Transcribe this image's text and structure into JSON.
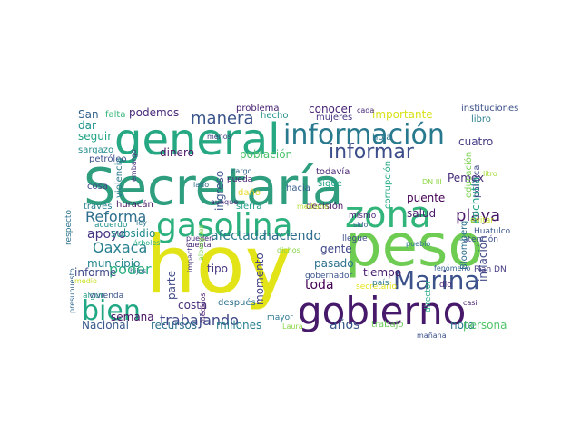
{
  "words": [
    {
      "text": "Secretaría",
      "color": "#2e9e7f"
    },
    {
      "text": "hoy",
      "color": "#e2e418"
    },
    {
      "text": "peso",
      "color": "#6fcc53"
    },
    {
      "text": "gobierno",
      "color": "#47196b"
    },
    {
      "text": "general",
      "color": "#26a883"
    },
    {
      "text": "información",
      "color": "#29798e"
    },
    {
      "text": "gasolina",
      "color": "#2cb17e"
    },
    {
      "text": "zona",
      "color": "#32b57a"
    },
    {
      "text": "Marina",
      "color": "#3b528b"
    },
    {
      "text": "bien",
      "color": "#22a785"
    },
    {
      "text": "informar",
      "color": "#3d4e8a"
    },
    {
      "text": "manera",
      "color": "#3a548c"
    },
    {
      "text": "Reforma",
      "color": "#2e6f8e"
    },
    {
      "text": "playa",
      "color": "#481769"
    },
    {
      "text": "trabajando",
      "color": "#3f4889"
    },
    {
      "text": "Oaxaca",
      "color": "#27808e"
    },
    {
      "text": "apoyo",
      "color": "#453681"
    },
    {
      "text": "poder",
      "color": "#2bb07f"
    },
    {
      "text": "municipio",
      "color": "#25858e"
    },
    {
      "text": "haciendo",
      "color": "#2f6c8e"
    },
    {
      "text": "ingreso",
      "color": "#3b528b"
    },
    {
      "text": "población",
      "color": "#4cc26c"
    },
    {
      "text": "importante",
      "color": "#d8e219"
    },
    {
      "text": "afectada",
      "color": "#287c8e"
    },
    {
      "text": "Pemex",
      "color": "#472c7a"
    },
    {
      "text": "podemos",
      "color": "#482979"
    },
    {
      "text": "conocer",
      "color": "#482575"
    },
    {
      "text": "dinero",
      "color": "#481668"
    },
    {
      "text": "Pochutla",
      "color": "#21a685"
    },
    {
      "text": "subsidio",
      "color": "#238a8d"
    },
    {
      "text": "gente",
      "color": "#3f4788"
    },
    {
      "text": "pasado",
      "color": "#2c728e"
    },
    {
      "text": "salud",
      "color": "#481d6f"
    },
    {
      "text": "costa",
      "color": "#472d7b"
    },
    {
      "text": "toda",
      "color": "#440154"
    },
    {
      "text": "millones",
      "color": "#26828e"
    },
    {
      "text": "recursos",
      "color": "#2d718e"
    },
    {
      "text": "parte",
      "color": "#3e4989"
    },
    {
      "text": "momento",
      "color": "#424086"
    },
    {
      "text": "años",
      "color": "#38588c"
    },
    {
      "text": "nota",
      "color": "#2b758e"
    },
    {
      "text": "semana",
      "color": "#471365"
    },
    {
      "text": "informe",
      "color": "#3e4a89"
    },
    {
      "text": "Nacional",
      "color": "#38598c"
    },
    {
      "text": "San",
      "color": "#33638d"
    },
    {
      "text": "dar",
      "color": "#20928c"
    },
    {
      "text": "seguir",
      "color": "#20a386"
    },
    {
      "text": "sargazo",
      "color": "#228d8d"
    },
    {
      "text": "tipo",
      "color": "#46337f"
    },
    {
      "text": "puente",
      "color": "#440154"
    },
    {
      "text": "tiempo",
      "color": "#481b6d"
    },
    {
      "text": "inflación",
      "color": "#3f4889"
    },
    {
      "text": "persona",
      "color": "#52c569"
    },
    {
      "text": "trabajo",
      "color": "#6ccd5a"
    },
    {
      "text": "cuatro",
      "color": "#443a83"
    },
    {
      "text": "hoja",
      "color": "#2a778e"
    },
    {
      "text": "problema",
      "color": "#482173"
    },
    {
      "text": "hecho",
      "color": "#21918c"
    },
    {
      "text": "mujeres",
      "color": "#46337e"
    },
    {
      "text": "cada",
      "color": "#472a7a"
    },
    {
      "text": "instituciones",
      "color": "#3b518b"
    },
    {
      "text": "libro",
      "color": "#277f8e"
    },
    {
      "text": "falta",
      "color": "#35b779"
    },
    {
      "text": "menos",
      "color": "#433e85"
    },
    {
      "text": "petróleo",
      "color": "#3c4f8a"
    },
    {
      "text": "embargo",
      "color": "#46307e"
    },
    {
      "text": "cargo",
      "color": "#31668e"
    },
    {
      "text": "todavía",
      "color": "#482475"
    },
    {
      "text": "corrupción",
      "color": "#25ab82"
    },
    {
      "text": "educación",
      "color": "#7ad151"
    },
    {
      "text": "política",
      "color": "#3f4889"
    },
    {
      "text": "litro",
      "color": "#a5db36"
    },
    {
      "text": "cosa",
      "color": "#404588"
    },
    {
      "text": "violencia",
      "color": "#297a8e"
    },
    {
      "text": "huracán",
      "color": "#481668"
    },
    {
      "text": "daño",
      "color": "#ead72c"
    },
    {
      "text": "hacia",
      "color": "#355f8d"
    },
    {
      "text": "sigue",
      "color": "#1fa287"
    },
    {
      "text": "DN III",
      "color": "#8ed645"
    },
    {
      "text": "pueda",
      "color": "#482173"
    },
    {
      "text": "lado",
      "color": "#306a8e"
    },
    {
      "text": "aunque",
      "color": "#472e7c"
    },
    {
      "text": "sierra",
      "color": "#1f9e89"
    },
    {
      "text": "través",
      "color": "#277e8e"
    },
    {
      "text": "acuerdo",
      "color": "#20938c"
    },
    {
      "text": "ley",
      "color": "#2a768e"
    },
    {
      "text": "decisión",
      "color": "#471063"
    },
    {
      "text": "Huatulco",
      "color": "#39568c"
    },
    {
      "text": "mediano",
      "color": "#b5de2b"
    },
    {
      "text": "evitar",
      "color": "#c2df23"
    },
    {
      "text": "sido",
      "color": "#33638d"
    },
    {
      "text": "atención",
      "color": "#3c4f8a"
    },
    {
      "text": "respecto",
      "color": "#2c738e"
    },
    {
      "text": "árboles",
      "color": "#25ac82"
    },
    {
      "text": "pueden",
      "color": "#482878"
    },
    {
      "text": "cuenta",
      "color": "#482475"
    },
    {
      "text": "dichos",
      "color": "#86d549"
    },
    {
      "text": "Bloomberg",
      "color": "#2d708e"
    },
    {
      "text": "gobernador",
      "color": "#3a548c"
    },
    {
      "text": "fenómeno",
      "color": "#34618d"
    },
    {
      "text": "Plan DN",
      "color": "#443983"
    },
    {
      "text": "secretario",
      "color": "#e5e419"
    },
    {
      "text": "país",
      "color": "#2a788e"
    },
    {
      "text": "hijos",
      "color": "#306a8e"
    },
    {
      "text": "médicos",
      "color": "#481a6c"
    },
    {
      "text": "albergues",
      "color": "#7fd34e"
    },
    {
      "text": "impacto",
      "color": "#46327e"
    },
    {
      "text": "mayor",
      "color": "#2a768e"
    },
    {
      "text": "medio",
      "color": "#c8e020"
    },
    {
      "text": "algún",
      "color": "#1f9f88"
    },
    {
      "text": "vivienda",
      "color": "#3b528b"
    },
    {
      "text": "presupuesto",
      "color": "#31688e"
    },
    {
      "text": "después",
      "color": "#2c728e"
    },
    {
      "text": "Laura",
      "color": "#8bd646"
    },
    {
      "text": "director",
      "color": "#25ab82"
    },
    {
      "text": "mañana",
      "color": "#3b528b"
    },
    {
      "text": "dio",
      "color": "#482374"
    },
    {
      "text": "casi",
      "color": "#481b6d"
    },
    {
      "text": "pueblo",
      "color": "#2d718e"
    },
    {
      "text": "llegue",
      "color": "#3e4c8a"
    },
    {
      "text": "mismo",
      "color": "#482576"
    }
  ]
}
